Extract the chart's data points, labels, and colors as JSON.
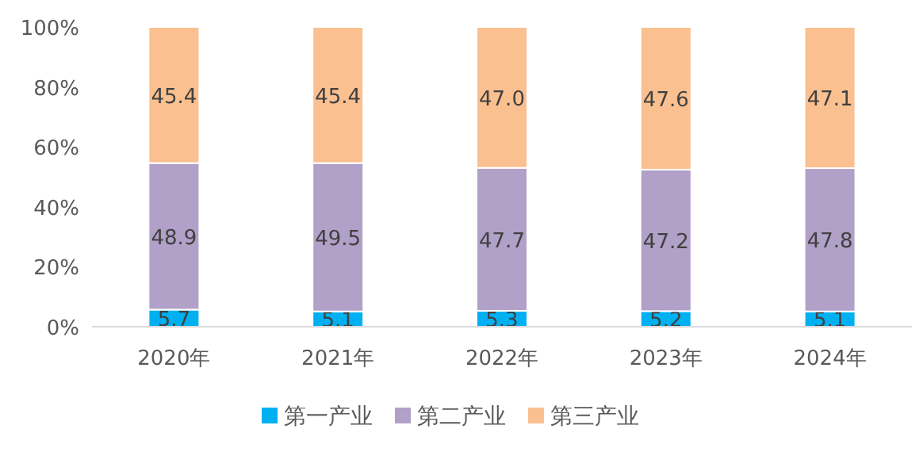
{
  "chart_data": {
    "type": "bar",
    "stacked": true,
    "categories": [
      "2020年",
      "2021年",
      "2022年",
      "2023年",
      "2024年"
    ],
    "series": [
      {
        "name": "第一产业",
        "color": "#00b0f0",
        "values": [
          5.7,
          5.1,
          5.3,
          5.2,
          5.1
        ]
      },
      {
        "name": "第二产业",
        "color": "#b1a0c7",
        "values": [
          48.9,
          49.5,
          47.7,
          47.2,
          47.8
        ]
      },
      {
        "name": "第三产业",
        "color": "#fac090",
        "values": [
          45.4,
          45.4,
          47.0,
          47.6,
          47.1
        ],
        "value_labels": [
          "45.4",
          "45.4",
          "47.0",
          "47.6",
          "47.1"
        ]
      }
    ],
    "ylim": [
      0,
      100
    ],
    "yticks": [
      {
        "value": 0,
        "label": "0%"
      },
      {
        "value": 20,
        "label": "20%"
      },
      {
        "value": 40,
        "label": "40%"
      },
      {
        "value": 60,
        "label": "60%"
      },
      {
        "value": 80,
        "label": "80%"
      },
      {
        "value": 100,
        "label": "100%"
      }
    ],
    "data_labels": true,
    "legend": "bottom",
    "grid": false
  }
}
